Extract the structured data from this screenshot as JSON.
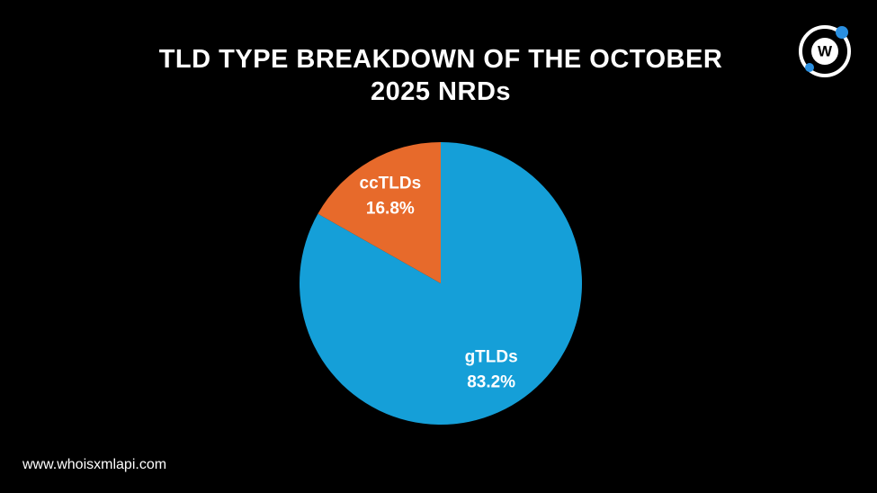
{
  "chart_data": {
    "type": "pie",
    "title": "TLD TYPE BREAKDOWN OF THE OCTOBER 2025 NRDs",
    "categories": [
      "gTLDs",
      "ccTLDs"
    ],
    "values": [
      83.2,
      16.8
    ],
    "value_labels": [
      "83.2%",
      "16.8%"
    ],
    "colors": [
      "#159fd8",
      "#e76a2b"
    ]
  },
  "footer": "www.whoisxmlapi.com",
  "logo_text": "W"
}
